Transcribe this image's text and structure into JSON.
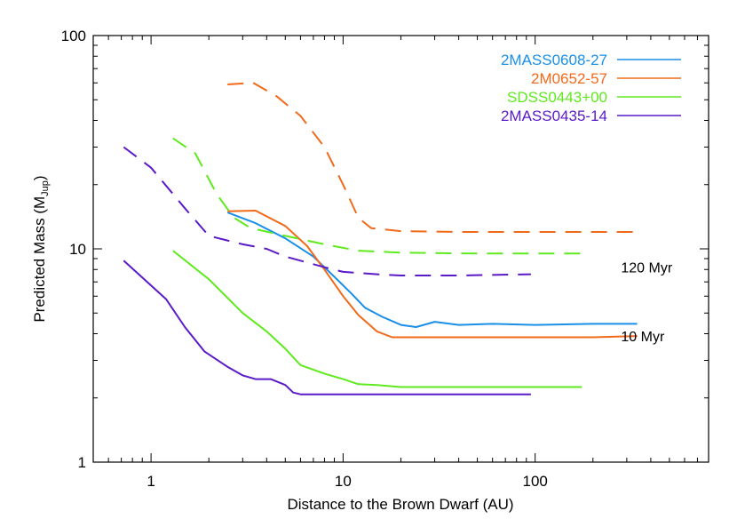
{
  "chart_data": {
    "type": "line",
    "title": "",
    "xlabel": "Distance to the Brown Dwarf (AU)",
    "ylabel_main": "Predicted Mass (M",
    "ylabel_sub": "Jup",
    "ylabel_close": ")",
    "xscale": "log",
    "yscale": "log",
    "xlim": [
      0.5,
      800
    ],
    "ylim": [
      1,
      100
    ],
    "x_tick_labels": [
      "1",
      "10",
      "100"
    ],
    "y_tick_labels": [
      "1",
      "10",
      "100"
    ],
    "legend_position": "top-right",
    "annotations": [
      {
        "text": "120 Myr",
        "x": 280,
        "y": 8.2
      },
      {
        "text": "10 Myr",
        "x": 280,
        "y": 3.9
      }
    ],
    "series": [
      {
        "name": "2MASS0608-27",
        "color": "#1a8fe8",
        "style": "solid",
        "age": "10 Myr",
        "points": [
          [
            2.5,
            14.8
          ],
          [
            3.5,
            13.2
          ],
          [
            5,
            11.2
          ],
          [
            7,
            9.2
          ],
          [
            9,
            7.4
          ],
          [
            11,
            6.2
          ],
          [
            13,
            5.3
          ],
          [
            16,
            4.8
          ],
          [
            20,
            4.4
          ],
          [
            24,
            4.3
          ],
          [
            30,
            4.55
          ],
          [
            40,
            4.4
          ],
          [
            60,
            4.45
          ],
          [
            100,
            4.4
          ],
          [
            200,
            4.45
          ],
          [
            340,
            4.45
          ]
        ]
      },
      {
        "name": "2M0652-57",
        "color": "#f06a1a",
        "style": "solid",
        "age": "10 Myr",
        "points": [
          [
            2.5,
            15.0
          ],
          [
            3.5,
            15.1
          ],
          [
            5,
            12.8
          ],
          [
            6.5,
            10.3
          ],
          [
            8,
            8.0
          ],
          [
            10,
            6.0
          ],
          [
            12,
            4.9
          ],
          [
            15,
            4.1
          ],
          [
            18,
            3.85
          ],
          [
            25,
            3.85
          ],
          [
            40,
            3.85
          ],
          [
            100,
            3.85
          ],
          [
            200,
            3.85
          ],
          [
            340,
            3.9
          ]
        ]
      },
      {
        "name": "SDSS0443+00",
        "color": "#5eea1e",
        "style": "solid",
        "age": "10 Myr",
        "points": [
          [
            1.3,
            9.8
          ],
          [
            2,
            7.2
          ],
          [
            3,
            5.0
          ],
          [
            4,
            4.1
          ],
          [
            5,
            3.4
          ],
          [
            6,
            2.85
          ],
          [
            8,
            2.6
          ],
          [
            10,
            2.45
          ],
          [
            12,
            2.32
          ],
          [
            15,
            2.3
          ],
          [
            20,
            2.25
          ],
          [
            40,
            2.25
          ],
          [
            100,
            2.25
          ],
          [
            175,
            2.25
          ]
        ]
      },
      {
        "name": "2MASS0435-14",
        "color": "#5a1ac8",
        "style": "solid",
        "age": "10 Myr",
        "points": [
          [
            0.72,
            8.8
          ],
          [
            1.2,
            5.8
          ],
          [
            1.5,
            4.3
          ],
          [
            1.9,
            3.3
          ],
          [
            2.5,
            2.8
          ],
          [
            3,
            2.55
          ],
          [
            3.5,
            2.45
          ],
          [
            4.2,
            2.45
          ],
          [
            5,
            2.3
          ],
          [
            5.5,
            2.12
          ],
          [
            6,
            2.08
          ],
          [
            10,
            2.08
          ],
          [
            30,
            2.08
          ],
          [
            95,
            2.08
          ]
        ]
      },
      {
        "name": "2M0652-57 (120 Myr)",
        "color": "#f06a1a",
        "style": "dashed",
        "age": "120 Myr",
        "points": [
          [
            2.5,
            59
          ],
          [
            3.4,
            60
          ],
          [
            4.5,
            52
          ],
          [
            6,
            42
          ],
          [
            8,
            30
          ],
          [
            10,
            20
          ],
          [
            12,
            14
          ],
          [
            14,
            12.5
          ],
          [
            20,
            12.1
          ],
          [
            40,
            12.0
          ],
          [
            100,
            12.0
          ],
          [
            340,
            12.0
          ]
        ]
      },
      {
        "name": "SDSS0443+00 (120 Myr)",
        "color": "#5eea1e",
        "style": "dashed",
        "age": "120 Myr",
        "points": [
          [
            1.3,
            33
          ],
          [
            1.7,
            28
          ],
          [
            2.2,
            18
          ],
          [
            2.7,
            14
          ],
          [
            3.3,
            12.5
          ],
          [
            5,
            11.5
          ],
          [
            8,
            10.5
          ],
          [
            12,
            9.8
          ],
          [
            20,
            9.6
          ],
          [
            50,
            9.5
          ],
          [
            100,
            9.5
          ],
          [
            175,
            9.5
          ]
        ]
      },
      {
        "name": "2MASS0435-14 (120 Myr)",
        "color": "#5a1ac8",
        "style": "dashed",
        "age": "120 Myr",
        "points": [
          [
            0.72,
            30
          ],
          [
            1.0,
            24
          ],
          [
            1.5,
            15.5
          ],
          [
            2,
            11.5
          ],
          [
            3,
            10.5
          ],
          [
            4,
            10.0
          ],
          [
            5,
            9.2
          ],
          [
            6,
            8.8
          ],
          [
            8,
            8.2
          ],
          [
            10,
            7.8
          ],
          [
            15,
            7.6
          ],
          [
            20,
            7.5
          ],
          [
            40,
            7.5
          ],
          [
            95,
            7.6
          ]
        ]
      }
    ]
  }
}
